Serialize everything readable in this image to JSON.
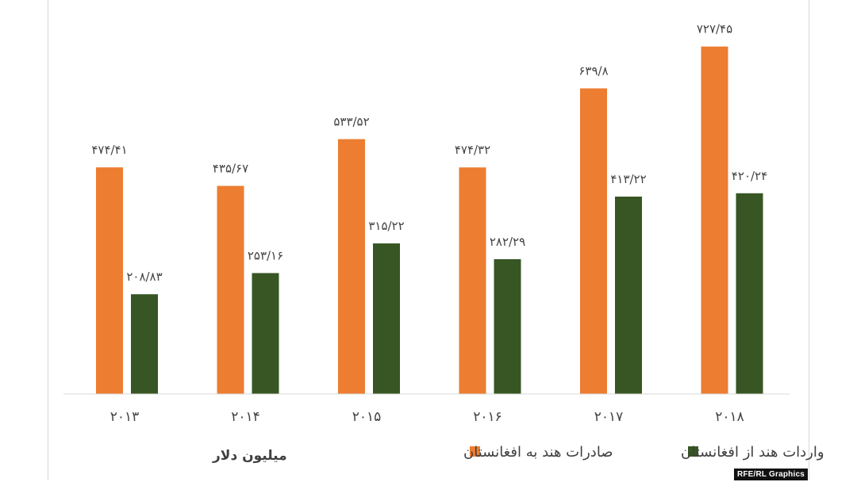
{
  "chart_data": {
    "type": "bar",
    "categories": [
      "۲۰۱۳",
      "۲۰۱۴",
      "۲۰۱۵",
      "۲۰۱۶",
      "۲۰۱۷",
      "۲۰۱۸"
    ],
    "series": [
      {
        "name": "صادرات هند به افغانستان",
        "color": "#ED7D31",
        "values": [
          474.41,
          435.67,
          533.52,
          474.32,
          639.8,
          727.45
        ],
        "labels": [
          "۴۷۴/۴۱",
          "۴۳۵/۶۷",
          "۵۳۳/۵۲",
          "۴۷۴/۳۲",
          "۶۳۹/۸",
          "۷۲۷/۴۵"
        ]
      },
      {
        "name": "واردات هند از افغانستان",
        "color": "#375623",
        "values": [
          208.83,
          253.16,
          315.22,
          282.29,
          413.22,
          420.24
        ],
        "labels": [
          "۲۰۸/۸۳",
          "۲۵۳/۱۶",
          "۳۱۵/۲۲",
          "۲۸۲/۲۹",
          "۴۱۳/۲۲",
          "۴۲۰/۲۴"
        ]
      }
    ],
    "ylabel": "میلیون دلار",
    "ylim": [
      0,
      780
    ],
    "grid": false,
    "legend": "bottom"
  },
  "credit": "RFE/RL Graphics"
}
